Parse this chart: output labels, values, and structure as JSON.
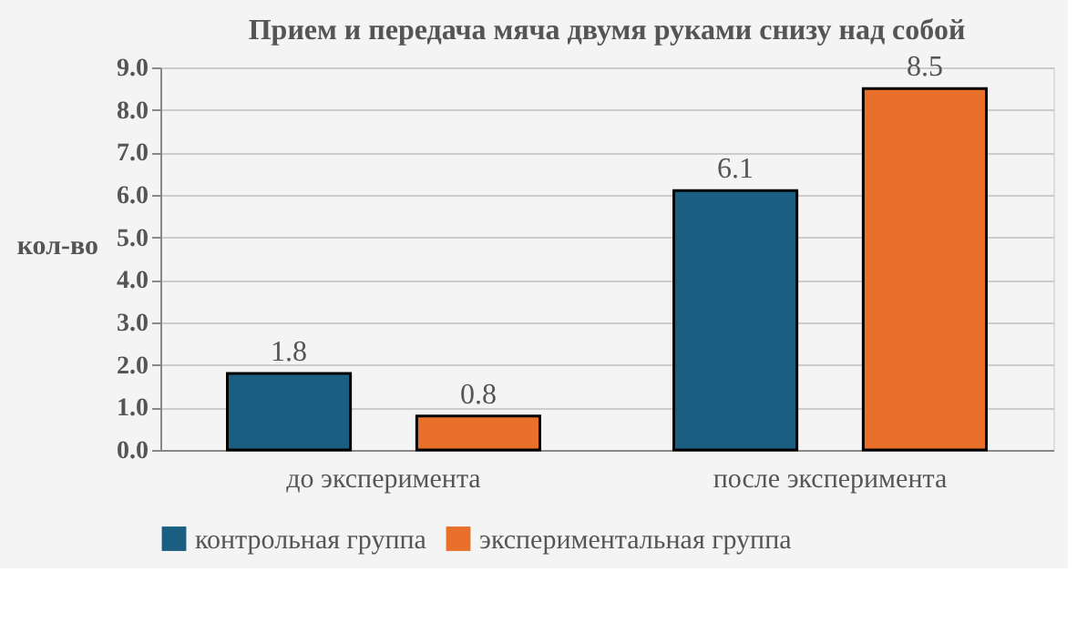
{
  "chart_data": {
    "type": "bar",
    "title": "Прием и передача мяча двумя руками снизу над собой",
    "ylabel": "кол-во",
    "categories": [
      "до эксперимента",
      "после эксперимента"
    ],
    "series": [
      {
        "name": "контрольная группа",
        "color": "#1a5f82",
        "values": [
          1.8,
          6.1
        ]
      },
      {
        "name": "экспериментальная группа",
        "color": "#e8702a",
        "values": [
          0.8,
          8.5
        ]
      }
    ],
    "ylim": [
      0,
      9
    ],
    "yticks": [
      {
        "value": 0,
        "label": "0.0"
      },
      {
        "value": 1,
        "label": "1.0"
      },
      {
        "value": 2,
        "label": "2.0"
      },
      {
        "value": 3,
        "label": "3.0"
      },
      {
        "value": 4,
        "label": "4.0"
      },
      {
        "value": 5,
        "label": "5.0"
      },
      {
        "value": 6,
        "label": "6.0"
      },
      {
        "value": 7,
        "label": "7.0"
      },
      {
        "value": 8,
        "label": "8.0"
      },
      {
        "value": 9,
        "label": "9.0"
      }
    ],
    "grid": "y",
    "legend": "bottom",
    "data_labels": true
  }
}
